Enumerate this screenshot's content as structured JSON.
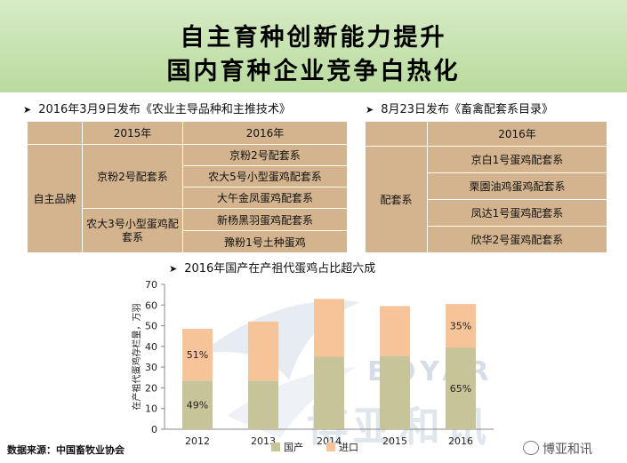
{
  "header": {
    "title_line1": "自主育种创新能力提升",
    "title_line2": "国内育种企业竞争白热化"
  },
  "left_section": {
    "heading": "2016年3月9日发布《农业主导品种和主推技术》",
    "col_2015": "2015年",
    "col_2016": "2016年",
    "row_label": "自主品牌",
    "group1": {
      "name_2015": "京粉2号配套系",
      "items_2016": [
        "京粉2号配套系",
        "农大5号小型蛋鸡配套系",
        "大午金凤蛋鸡配套系"
      ]
    },
    "group2": {
      "name_2015": "农大3号小型蛋鸡配套系",
      "items_2016": [
        "新杨黑羽蛋鸡配套系",
        "豫粉1号土种蛋鸡"
      ]
    }
  },
  "right_section": {
    "heading": "8月23日发布《畜禽配套系目录》",
    "col_2016": "2016年",
    "row_label": "配套系",
    "items": [
      "京白1号蛋鸡配套系",
      "栗園油鸡蛋鸡配套系",
      "凤达1号蛋鸡配套系",
      "欣华2号蛋鸡配套系"
    ]
  },
  "chart_section": {
    "heading": "2016年国产在产祖代蛋鸡占比超六成"
  },
  "chart_data": {
    "type": "bar",
    "stacked": true,
    "categories": [
      "2012",
      "2013",
      "2014",
      "2015",
      "2016"
    ],
    "series": [
      {
        "name": "国产",
        "values": [
          23.5,
          23.5,
          35,
          35.5,
          39.5
        ],
        "color": "#c8c49a"
      },
      {
        "name": "进口",
        "values": [
          25,
          28.5,
          28,
          24,
          21
        ],
        "color": "#f7c398"
      }
    ],
    "annotations": [
      {
        "category": "2012",
        "series": "进口",
        "text": "51%"
      },
      {
        "category": "2012",
        "series": "国产",
        "text": "49%"
      },
      {
        "category": "2016",
        "series": "进口",
        "text": "35%"
      },
      {
        "category": "2016",
        "series": "国产",
        "text": "65%"
      }
    ],
    "ylabel": "在产祖代蛋鸡存栏量，万羽",
    "ylim": [
      0,
      70
    ],
    "yticks": [
      0,
      10,
      20,
      30,
      40,
      50,
      60,
      70
    ],
    "legend_position": "bottom",
    "grid": false
  },
  "watermark": {
    "text_latin": "BOYAR",
    "text_cn": "博亚和讯"
  },
  "footer": {
    "source": "数据来源：中国畜牧业协会",
    "wechat_brand": "博亚和讯"
  }
}
